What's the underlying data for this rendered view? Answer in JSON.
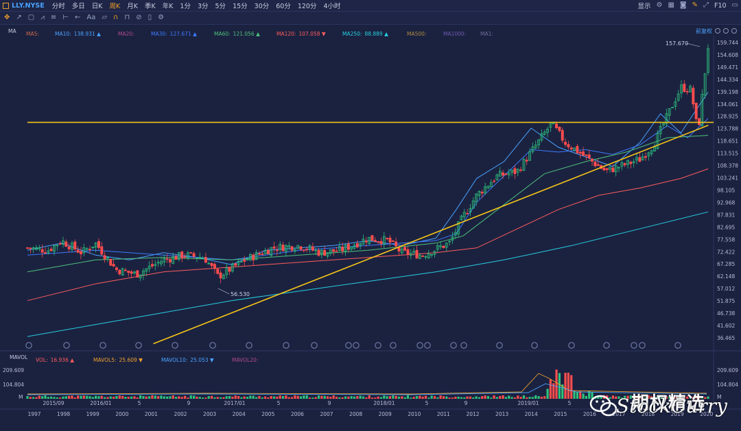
{
  "topbar": {
    "symbol": "LLY.NYSE",
    "periods": [
      "分时",
      "多日",
      "日K",
      "周K",
      "月K",
      "季K",
      "年K",
      "1分",
      "3分",
      "5分",
      "15分",
      "30分",
      "60分",
      "120分",
      "4小时"
    ],
    "active_period": "周K",
    "display_label": "显示",
    "right_text": "F10"
  },
  "toolbar": {
    "icons": [
      "move-icon",
      "cursor-icon",
      "rect-icon",
      "fib-icon",
      "line-tool-icon",
      "ruler-icon",
      "arrow-tool-icon",
      "text-tool-icon",
      "comment-icon",
      "magnet-icon",
      "lock-icon",
      "hide-icon",
      "delete-icon",
      "settings-icon"
    ]
  },
  "price_panel": {
    "indicator": "MA",
    "adjust_label": "前复权",
    "legend": [
      {
        "label": "MA5:",
        "value": "",
        "color": "#d0694a"
      },
      {
        "label": "MA10:",
        "value": "138.931",
        "color": "#4aa3ff",
        "arrow": "▲"
      },
      {
        "label": "MA20:",
        "value": "",
        "color": "#b04a8a"
      },
      {
        "label": "MA30:",
        "value": "127.671",
        "color": "#3c7bff",
        "arrow": "▲"
      },
      {
        "label": "MA60:",
        "value": "121.056",
        "color": "#4ec27a",
        "arrow": "▲"
      },
      {
        "label": "MA120:",
        "value": "107.058",
        "color": "#ff5c5c",
        "arrow": "▼"
      },
      {
        "label": "MA250:",
        "value": "88.889",
        "color": "#25d0e0",
        "arrow": "▲"
      },
      {
        "label": "MA500:",
        "value": "",
        "color": "#b08a40"
      },
      {
        "label": "MA1000:",
        "value": "",
        "color": "#6e5ab0"
      },
      {
        "label": "MA1:",
        "value": "",
        "color": "#6e6e9a"
      }
    ],
    "y_ticks": [
      "159.744",
      "154.608",
      "149.471",
      "144.334",
      "139.198",
      "134.061",
      "128.925",
      "123.788",
      "118.651",
      "113.515",
      "108.378",
      "103.241",
      "98.105",
      "92.968",
      "87.831",
      "82.695",
      "77.558",
      "72.422",
      "67.285",
      "62.148",
      "57.012",
      "51.875",
      "46.738",
      "41.602",
      "36.465"
    ],
    "y_range": [
      36.465,
      159.744
    ],
    "high_label": "157.670",
    "low_label": "56.530",
    "horizontal_line": 126.4,
    "trendline": [
      [
        0.185,
        34.0
      ],
      [
        0.955,
        121.0
      ]
    ]
  },
  "chart_data": {
    "type": "candlestick",
    "moving_averages": {
      "MA10": [
        [
          0.0,
          73
        ],
        [
          0.05,
          76
        ],
        [
          0.1,
          71
        ],
        [
          0.15,
          69
        ],
        [
          0.2,
          72
        ],
        [
          0.25,
          70
        ],
        [
          0.3,
          67
        ],
        [
          0.35,
          73
        ],
        [
          0.4,
          74
        ],
        [
          0.45,
          75
        ],
        [
          0.5,
          77
        ],
        [
          0.55,
          75
        ],
        [
          0.6,
          78
        ],
        [
          0.63,
          90
        ],
        [
          0.66,
          103
        ],
        [
          0.7,
          110
        ],
        [
          0.74,
          124
        ],
        [
          0.78,
          116
        ],
        [
          0.82,
          112
        ],
        [
          0.86,
          108
        ],
        [
          0.9,
          118
        ],
        [
          0.93,
          130
        ],
        [
          0.96,
          122
        ],
        [
          1.0,
          139
        ]
      ],
      "MA30": [
        [
          0.0,
          71
        ],
        [
          0.1,
          73
        ],
        [
          0.2,
          71
        ],
        [
          0.3,
          69
        ],
        [
          0.4,
          73
        ],
        [
          0.5,
          75
        ],
        [
          0.6,
          77
        ],
        [
          0.63,
          80
        ],
        [
          0.66,
          93
        ],
        [
          0.7,
          104
        ],
        [
          0.74,
          115
        ],
        [
          0.78,
          114
        ],
        [
          0.82,
          115
        ],
        [
          0.86,
          113
        ],
        [
          0.9,
          117
        ],
        [
          0.94,
          125
        ],
        [
          0.97,
          120
        ],
        [
          1.0,
          128
        ]
      ],
      "MA60": [
        [
          0.0,
          64
        ],
        [
          0.1,
          69
        ],
        [
          0.2,
          70
        ],
        [
          0.3,
          69
        ],
        [
          0.4,
          71
        ],
        [
          0.5,
          73
        ],
        [
          0.6,
          76
        ],
        [
          0.64,
          79
        ],
        [
          0.7,
          92
        ],
        [
          0.76,
          105
        ],
        [
          0.82,
          110
        ],
        [
          0.88,
          114
        ],
        [
          0.94,
          120
        ],
        [
          1.0,
          121
        ]
      ],
      "MA120": [
        [
          0.0,
          52
        ],
        [
          0.1,
          59
        ],
        [
          0.2,
          64
        ],
        [
          0.3,
          66
        ],
        [
          0.4,
          68
        ],
        [
          0.5,
          70
        ],
        [
          0.6,
          72
        ],
        [
          0.66,
          74
        ],
        [
          0.72,
          82
        ],
        [
          0.78,
          90
        ],
        [
          0.84,
          96
        ],
        [
          0.9,
          99
        ],
        [
          0.96,
          103
        ],
        [
          1.0,
          107
        ]
      ],
      "MA250": [
        [
          0.0,
          37
        ],
        [
          0.1,
          42
        ],
        [
          0.2,
          47
        ],
        [
          0.3,
          52
        ],
        [
          0.4,
          56
        ],
        [
          0.5,
          60
        ],
        [
          0.6,
          64
        ],
        [
          0.7,
          69
        ],
        [
          0.8,
          75
        ],
        [
          0.9,
          82
        ],
        [
          1.0,
          89
        ]
      ]
    },
    "candle_path": [
      [
        0.0,
        74
      ],
      [
        0.03,
        73
      ],
      [
        0.05,
        77
      ],
      [
        0.08,
        72
      ],
      [
        0.1,
        76
      ],
      [
        0.13,
        65
      ],
      [
        0.16,
        63
      ],
      [
        0.2,
        69
      ],
      [
        0.23,
        71
      ],
      [
        0.26,
        70
      ],
      [
        0.28,
        62
      ],
      [
        0.32,
        69
      ],
      [
        0.36,
        74
      ],
      [
        0.4,
        75
      ],
      [
        0.43,
        72
      ],
      [
        0.46,
        73
      ],
      [
        0.5,
        78
      ],
      [
        0.53,
        77
      ],
      [
        0.55,
        72
      ],
      [
        0.58,
        71
      ],
      [
        0.62,
        76
      ],
      [
        0.64,
        87
      ],
      [
        0.66,
        96
      ],
      [
        0.69,
        104
      ],
      [
        0.72,
        106
      ],
      [
        0.75,
        118
      ],
      [
        0.77,
        126
      ],
      [
        0.79,
        118
      ],
      [
        0.82,
        112
      ],
      [
        0.85,
        106
      ],
      [
        0.88,
        109
      ],
      [
        0.9,
        111
      ],
      [
        0.92,
        117
      ],
      [
        0.94,
        129
      ],
      [
        0.96,
        141
      ],
      [
        0.975,
        140
      ],
      [
        0.985,
        122
      ],
      [
        1.0,
        158
      ]
    ],
    "volume_ticks": [
      "209.609",
      "104.804"
    ],
    "volume_unit": "M",
    "volume_legend": [
      {
        "label": "VOL:",
        "value": "16.936",
        "color": "#ff5c5c",
        "arrow": "▲"
      },
      {
        "label": "MAVOL5:",
        "value": "25.609",
        "color": "#f0a02a",
        "arrow": "▼"
      },
      {
        "label": "MAVOL10:",
        "value": "25.053",
        "color": "#4aa3ff",
        "arrow": "▼"
      },
      {
        "label": "MAVOL20:",
        "value": "",
        "color": "#b04a8a"
      }
    ],
    "volume_indicator": "MAVOL",
    "x_ticks_top": [
      "2015/09",
      "2016/01",
      "5",
      "9",
      "2017/01",
      "5",
      "9",
      "2018/01",
      "5",
      "9",
      "2019/01",
      "5"
    ],
    "x_ticks_year": [
      "1997",
      "1998",
      "1999",
      "2000",
      "2001",
      "2002",
      "2003",
      "2004",
      "2005",
      "2006",
      "2007",
      "2008",
      "2009",
      "2010",
      "2011",
      "2012",
      "2013",
      "2014",
      "2015",
      "2016",
      "2017",
      "2018",
      "2019",
      "2020"
    ]
  },
  "watermark": {
    "cn": "期权精选",
    "en": "StockCurry"
  }
}
